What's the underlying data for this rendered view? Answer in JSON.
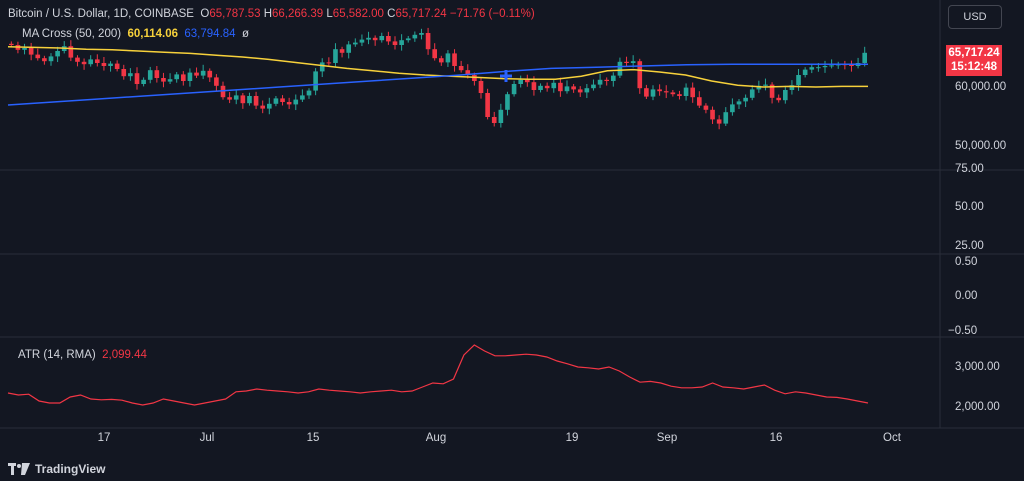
{
  "header": {
    "symbol": "Bitcoin / U.S. Dollar, 1D, COINBASE",
    "open_label": "O",
    "open": "65,787.53",
    "high_label": "H",
    "high": "66,266.39",
    "low_label": "L",
    "low": "65,582.00",
    "close_label": "C",
    "close": "65,717.24",
    "change": "−71.76 (−0.11%)"
  },
  "ma_indicator": {
    "name": "MA Cross (50, 200)",
    "ma50_value": "60,114.06",
    "ma200_value": "63,794.84",
    "trailing": "ø"
  },
  "currency_button": "USD",
  "price_badge": {
    "price": "65,717.24",
    "countdown": "15:12:48"
  },
  "price_axis": [
    "60,000.00",
    "50,000.00"
  ],
  "osc1_axis": [
    "75.00",
    "50.00",
    "25.00"
  ],
  "osc2_axis": [
    "0.50",
    "0.00",
    "−0.50"
  ],
  "atr": {
    "name": "ATR (14, RMA)",
    "value": "2,099.44",
    "axis": [
      "3,000.00",
      "2,000.00"
    ]
  },
  "time_axis": [
    "17",
    "Jul",
    "15",
    "Aug",
    "19",
    "Sep",
    "16",
    "Oct"
  ],
  "branding": "TradingView",
  "colors": {
    "background": "#131722",
    "up": "#26a69a",
    "down": "#f23645",
    "ma50": "#f7d13b",
    "ma200": "#2962ff",
    "atr": "#f23645"
  },
  "chart_data": {
    "type": "line",
    "ohlc_last": {
      "open": 65787.53,
      "high": 66266.39,
      "low": 65582.0,
      "close": 65717.24
    },
    "price_ylim": [
      48000,
      68000
    ],
    "atr_ylim": [
      1600,
      3500
    ],
    "candles_close": [
      67000,
      66200,
      66500,
      65400,
      64800,
      64300,
      65100,
      66000,
      66800,
      64900,
      64200,
      63800,
      64600,
      64000,
      63500,
      63900,
      63000,
      61800,
      62300,
      60500,
      61200,
      62800,
      61500,
      60900,
      61300,
      62100,
      61000,
      62400,
      61900,
      62700,
      61600,
      60200,
      58300,
      57900,
      58600,
      57300,
      58500,
      56900,
      56400,
      57200,
      58100,
      57500,
      57100,
      57900,
      58600,
      59400,
      62600,
      64100,
      64000,
      66300,
      65700,
      67100,
      67400,
      67900,
      68200,
      67800,
      68500,
      67600,
      67000,
      67800,
      68100,
      68700,
      69000,
      66300,
      64800,
      64100,
      65600,
      63500,
      62800,
      62000,
      61000,
      59000,
      55000,
      54000,
      56200,
      58800,
      60500,
      61200,
      60800,
      59500,
      60200,
      59800,
      60700,
      59300,
      60100,
      59600,
      59100,
      59800,
      60400,
      61200,
      61000,
      61900,
      64200,
      64000,
      64300,
      59800,
      58400,
      59600,
      59300,
      59100,
      58800,
      58500,
      59900,
      58300,
      56900,
      56200,
      54600,
      53900,
      55800,
      57100,
      57600,
      58200,
      59600,
      60200,
      60400,
      58200,
      57800,
      59500,
      60300,
      62000,
      62900,
      63300,
      63300,
      63500,
      63600,
      63800,
      63700,
      63500,
      64000,
      65700
    ],
    "ma50": [
      66700,
      66600,
      66500,
      66300,
      66200,
      66000,
      65800,
      65600,
      65300,
      65000,
      64600,
      64100,
      63600,
      63100,
      62700,
      62300,
      62000,
      61800,
      61600,
      61400,
      61300,
      61300,
      61800,
      62700,
      62900,
      62500,
      62000,
      61000,
      60300,
      60000,
      60100,
      60000,
      60100,
      60100
    ],
    "ma200": [
      57000,
      57500,
      58000,
      58500,
      59000,
      59500,
      60000,
      60500,
      61000,
      61500,
      62000,
      62600,
      63100,
      63300,
      63500,
      63700,
      63800,
      63800,
      63800,
      63800
    ],
    "atr": [
      2350,
      2300,
      2320,
      2150,
      2100,
      2100,
      2250,
      2300,
      2200,
      2180,
      2190,
      2170,
      2100,
      2050,
      2100,
      2200,
      2150,
      2100,
      2050,
      2100,
      2150,
      2200,
      2380,
      2400,
      2450,
      2420,
      2400,
      2380,
      2350,
      2380,
      2450,
      2420,
      2400,
      2380,
      2350,
      2380,
      2400,
      2420,
      2380,
      2400,
      2500,
      2600,
      2580,
      2700,
      3300,
      3550,
      3400,
      3280,
      3280,
      3300,
      3320,
      3300,
      3250,
      3150,
      3080,
      3000,
      2980,
      2950,
      3000,
      2900,
      2750,
      2620,
      2640,
      2600,
      2520,
      2480,
      2480,
      2500,
      2600,
      2500,
      2480,
      2450,
      2500,
      2550,
      2420,
      2330,
      2380,
      2350,
      2300,
      2250,
      2240,
      2200,
      2150,
      2099
    ]
  }
}
